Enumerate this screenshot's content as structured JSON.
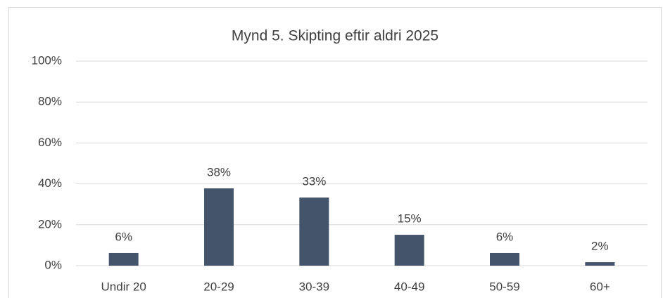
{
  "chart_data": {
    "type": "bar",
    "title": "Mynd 5. Skipting eftir aldri 2025",
    "categories": [
      "Undir 20",
      "20-29",
      "30-39",
      "40-49",
      "50-59",
      "60+"
    ],
    "values": [
      6.2,
      37.8,
      33.3,
      15.1,
      6.2,
      1.7
    ],
    "value_labels": [
      "6%",
      "38%",
      "33%",
      "15%",
      "6%",
      "2%"
    ],
    "color": "#44546a",
    "ylim": [
      0,
      100
    ],
    "yticks": [
      {
        "value": 0,
        "label": "0%"
      },
      {
        "value": 20,
        "label": "20%"
      },
      {
        "value": 40,
        "label": "40%"
      },
      {
        "value": 60,
        "label": "60%"
      },
      {
        "value": 80,
        "label": "80%"
      },
      {
        "value": 100,
        "label": "100%"
      }
    ],
    "grid": true
  }
}
